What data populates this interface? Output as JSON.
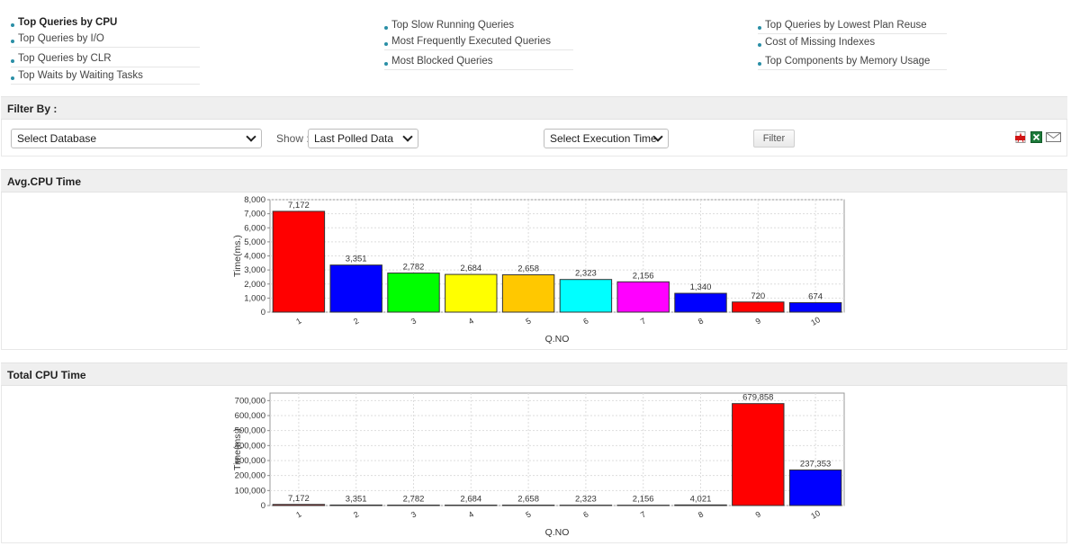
{
  "nav": {
    "col1": [
      "Top Queries by CPU",
      "Top Queries by I/O",
      "Top Queries by CLR",
      "Top Waits by Waiting Tasks"
    ],
    "col2": [
      "Top Slow Running Queries",
      "Most Frequently Executed Queries",
      "Most Blocked Queries"
    ],
    "col3": [
      "Top Queries by Lowest Plan Reuse",
      "Cost of Missing Indexes",
      "Top Components by Memory Usage"
    ],
    "active": "Top Queries by CPU"
  },
  "filter": {
    "title": "Filter By :",
    "database": "Select Database",
    "show_label": "Show :",
    "show_value": "Last Polled Data",
    "execution": "Select Execution Time",
    "button": "Filter",
    "icons": [
      "pdf-icon",
      "excel-icon",
      "mail-icon"
    ]
  },
  "sections": {
    "avg": "Avg.CPU Time",
    "total": "Total CPU Time"
  },
  "chart_data": [
    {
      "type": "bar",
      "title": "Avg.CPU Time",
      "xlabel": "Q.NO",
      "ylabel": "Time(ms.)",
      "categories": [
        "1",
        "2",
        "3",
        "4",
        "5",
        "6",
        "7",
        "8",
        "9",
        "10"
      ],
      "values": [
        7172,
        3351,
        2782,
        2684,
        2658,
        2323,
        2156,
        1340,
        720,
        674
      ],
      "labels": [
        "7,172",
        "3,351",
        "2,782",
        "2,684",
        "2,658",
        "2,323",
        "2,156",
        "1,340",
        "720",
        "674"
      ],
      "colors": [
        "#ff0000",
        "#0000ff",
        "#00ff00",
        "#ffff00",
        "#ffc800",
        "#00ffff",
        "#ff00ff",
        "#0000ff",
        "#ff0000",
        "#0000ff"
      ],
      "ylim": [
        0,
        8000
      ],
      "yticks": [
        0,
        1000,
        2000,
        3000,
        4000,
        5000,
        6000,
        7000,
        8000
      ],
      "ytick_labels": [
        "0",
        "1,000",
        "2,000",
        "3,000",
        "4,000",
        "5,000",
        "6,000",
        "7,000",
        "8,000"
      ],
      "grid": true
    },
    {
      "type": "bar",
      "title": "Total CPU Time",
      "xlabel": "Q.NO",
      "ylabel": "Time(ms.)",
      "categories": [
        "1",
        "2",
        "3",
        "4",
        "5",
        "6",
        "7",
        "8",
        "9",
        "10"
      ],
      "values": [
        7172,
        3351,
        2782,
        2684,
        2658,
        2323,
        2156,
        4021,
        679858,
        237353
      ],
      "labels": [
        "7,172",
        "3,351",
        "2,782",
        "2,684",
        "2,658",
        "2,323",
        "2,156",
        "4,021",
        "679,858",
        "237,353"
      ],
      "colors": [
        "#ff0000",
        "#0000ff",
        "#00ff00",
        "#ffff00",
        "#ffc800",
        "#00ffff",
        "#ff00ff",
        "#0000ff",
        "#ff0000",
        "#0000ff"
      ],
      "ylim": [
        0,
        750000
      ],
      "yticks": [
        0,
        100000,
        200000,
        300000,
        400000,
        500000,
        600000,
        700000
      ],
      "ytick_labels": [
        "0",
        "100,000",
        "200,000",
        "300,000",
        "400,000",
        "500,000",
        "600,000",
        "700,000"
      ],
      "grid": true
    }
  ]
}
